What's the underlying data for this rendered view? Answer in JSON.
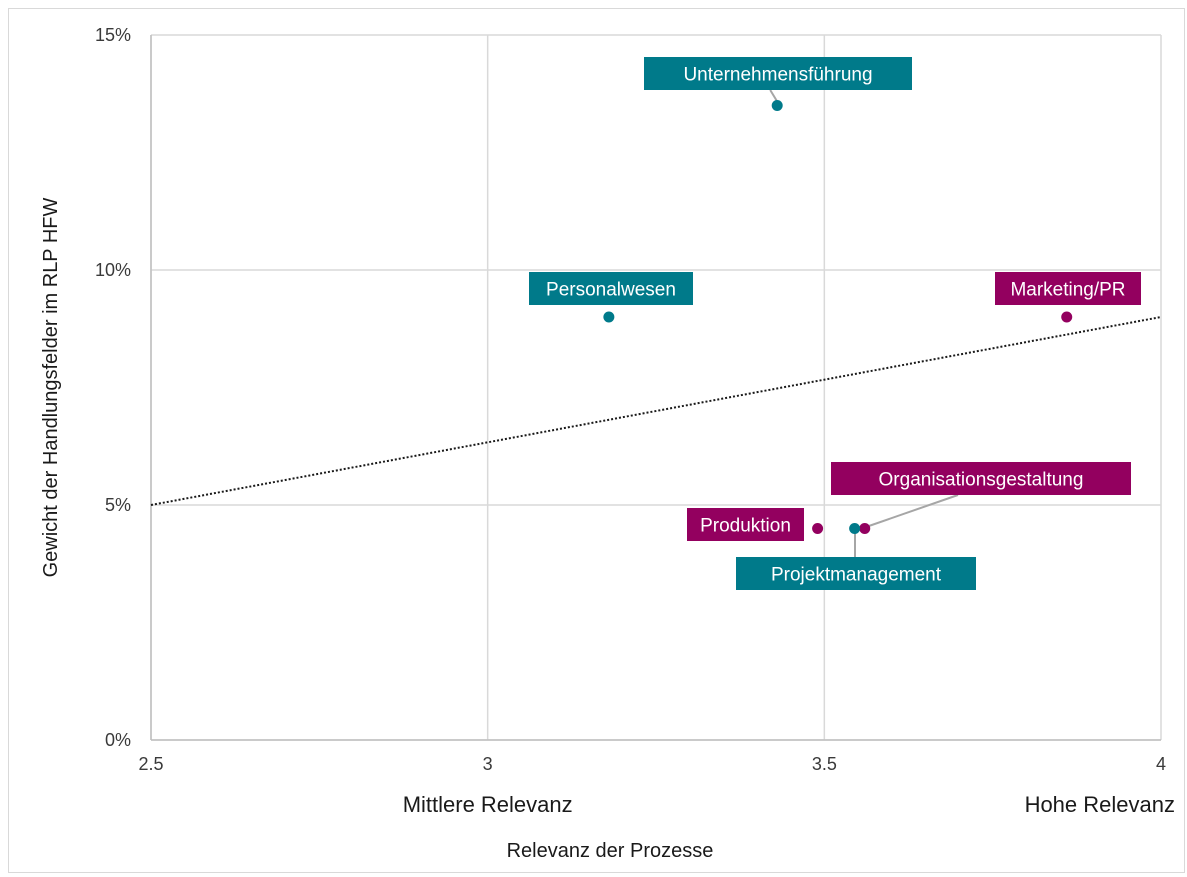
{
  "chart_data": {
    "type": "scatter",
    "xlabel": "Relevanz der Prozesse",
    "ylabel": "Gewicht der Handlungsfelder im RLP HFW",
    "xlim": [
      2.5,
      4
    ],
    "ylim": [
      0,
      0.15
    ],
    "x_ticks": [
      2.5,
      3,
      3.5,
      4
    ],
    "x_tick_labels": [
      "2.5",
      "3",
      "3.5",
      "4"
    ],
    "y_ticks": [
      0,
      0.05,
      0.1,
      0.15
    ],
    "y_tick_labels": [
      "0%",
      "5%",
      "10%",
      "15%"
    ],
    "x_category_labels": [
      {
        "x": 3,
        "text": "Mittlere Relevanz"
      },
      {
        "x": 4,
        "text": "Hohe Relevanz"
      }
    ],
    "grid": true,
    "colors": {
      "teal": "#007a8a",
      "magenta": "#93005f",
      "grid": "#d9d9d9",
      "trend": "#1a1a1a"
    },
    "points": [
      {
        "label": "Unternehmensführung",
        "x": 3.43,
        "y": 0.135,
        "color": "teal"
      },
      {
        "label": "Personalwesen",
        "x": 3.18,
        "y": 0.09,
        "color": "teal"
      },
      {
        "label": "Marketing/PR",
        "x": 3.86,
        "y": 0.09,
        "color": "magenta"
      },
      {
        "label": "Organisationsgestaltung",
        "x": 3.56,
        "y": 0.045,
        "color": "magenta"
      },
      {
        "label": "Produktion",
        "x": 3.49,
        "y": 0.045,
        "color": "magenta"
      },
      {
        "label": "Projektmanagement",
        "x": 3.545,
        "y": 0.045,
        "color": "teal"
      }
    ],
    "trendline": {
      "style": "dotted",
      "from": [
        2.5,
        0.05
      ],
      "to": [
        4,
        0.09
      ]
    }
  }
}
